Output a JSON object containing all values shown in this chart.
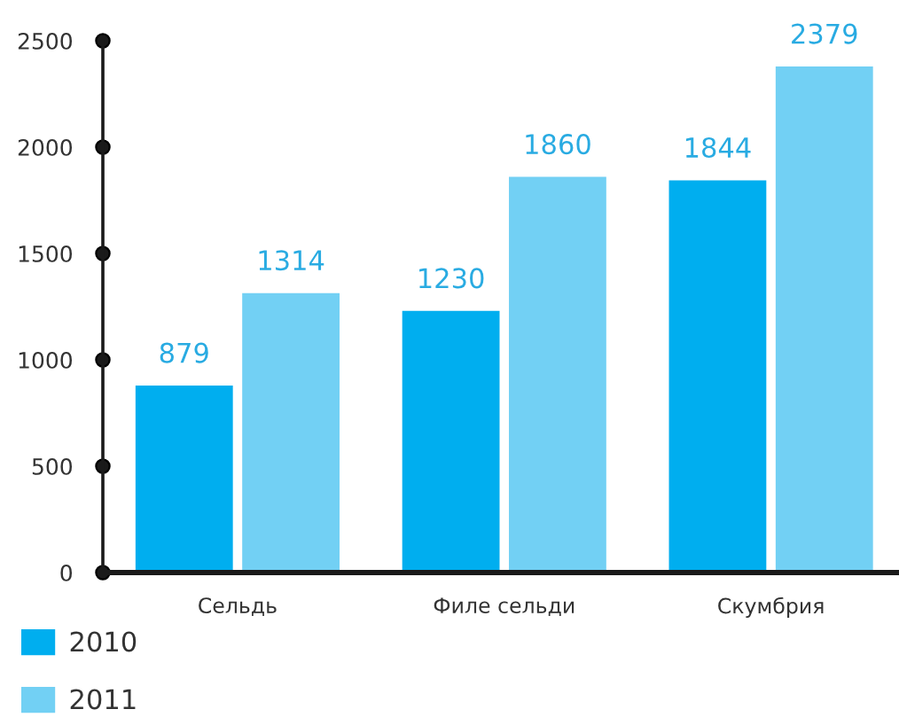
{
  "chart_data": {
    "type": "bar",
    "categories": [
      "Сельдь",
      "Филе сельди",
      "Скумбрия"
    ],
    "series": [
      {
        "name": "2010",
        "color": "#00aeef",
        "values": [
          879,
          1230,
          1844
        ]
      },
      {
        "name": "2011",
        "color": "#72d0f4",
        "values": [
          1314,
          1860,
          2379
        ]
      }
    ],
    "ylim": [
      0,
      2500
    ],
    "yticks": [
      0,
      500,
      1000,
      1500,
      2000,
      2500
    ],
    "data_labels": true,
    "legend": "bottom left"
  }
}
